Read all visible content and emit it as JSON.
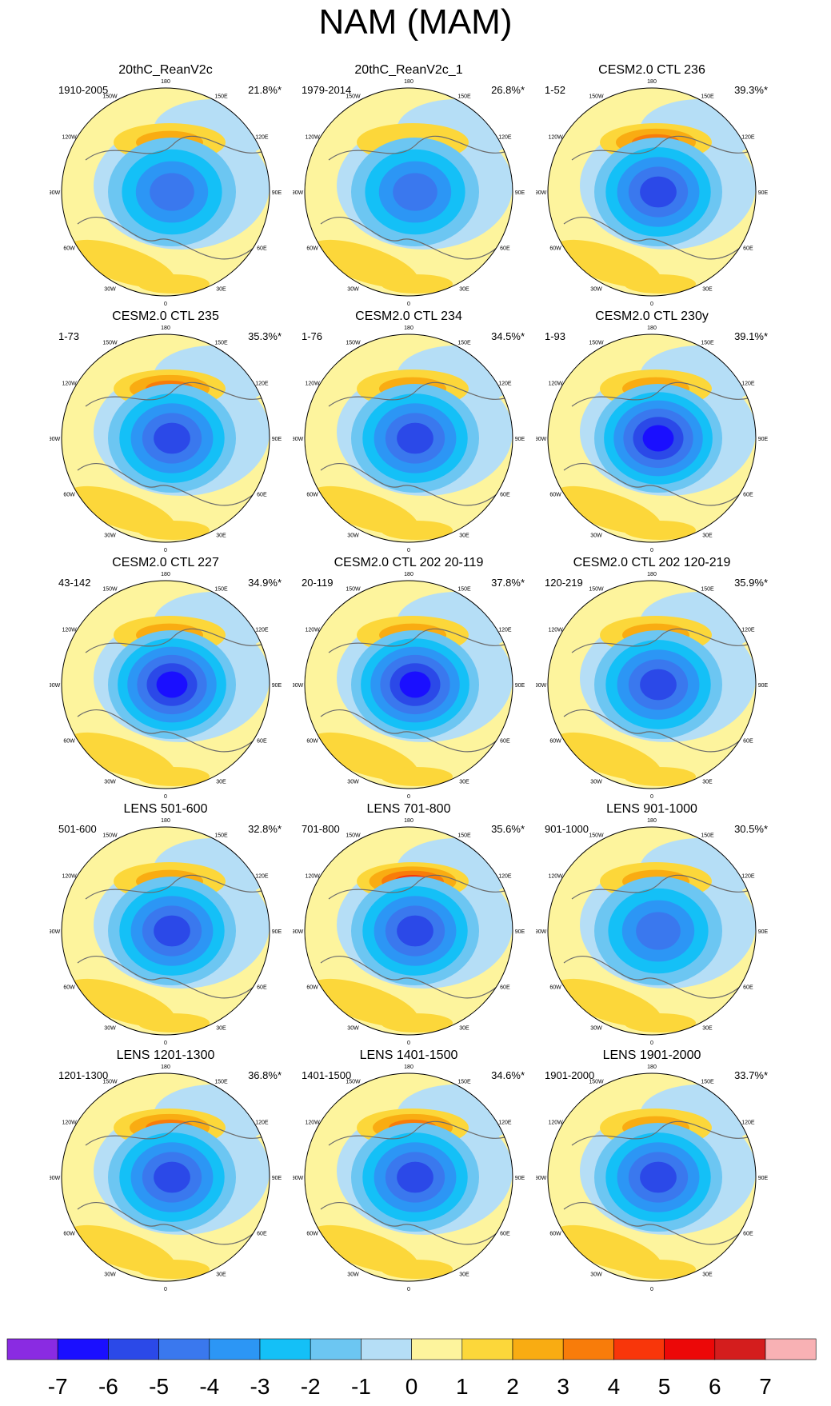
{
  "title": "NAM (MAM)",
  "chart_data": {
    "type": "heatmap",
    "projection": "north-polar-stereographic",
    "variable": "NAM regression pattern (MAM)",
    "longitude_labels": [
      "180",
      "150E",
      "120E",
      "90E",
      "60E",
      "30E",
      "0",
      "30W",
      "60W",
      "90W",
      "120W",
      "150W"
    ],
    "panels": [
      {
        "title": "20thC_ReanV2c",
        "period": "1910-2005",
        "variance": "21.8%*",
        "pole_min": -4,
        "pacific_max": 2
      },
      {
        "title": "20thC_ReanV2c_1",
        "period": "1979-2014",
        "variance": "26.8%*",
        "pole_min": -4,
        "pacific_max": 1
      },
      {
        "title": "CESM2.0 CTL 236",
        "period": "1-52",
        "variance": "39.3%*",
        "pole_min": -5,
        "pacific_max": 3
      },
      {
        "title": "CESM2.0 CTL 235",
        "period": "1-73",
        "variance": "35.3%*",
        "pole_min": -5,
        "pacific_max": 3
      },
      {
        "title": "CESM2.0 CTL 234",
        "period": "1-76",
        "variance": "34.5%*",
        "pole_min": -5,
        "pacific_max": 2
      },
      {
        "title": "CESM2.0 CTL 230y",
        "period": "1-93",
        "variance": "39.1%*",
        "pole_min": -6,
        "pacific_max": 2
      },
      {
        "title": "CESM2.0 CTL 227",
        "period": "43-142",
        "variance": "34.9%*",
        "pole_min": -6,
        "pacific_max": 2
      },
      {
        "title": "CESM2.0 CTL 202 20-119",
        "period": "20-119",
        "variance": "37.8%*",
        "pole_min": -6,
        "pacific_max": 2
      },
      {
        "title": "CESM2.0 CTL 202 120-219",
        "period": "120-219",
        "variance": "35.9%*",
        "pole_min": -5,
        "pacific_max": 2
      },
      {
        "title": "LENS 501-600",
        "period": "501-600",
        "variance": "32.8%*",
        "pole_min": -5,
        "pacific_max": 2
      },
      {
        "title": "LENS 701-800",
        "period": "701-800",
        "variance": "35.6%*",
        "pole_min": -5,
        "pacific_max": 4
      },
      {
        "title": "LENS 901-1000",
        "period": "901-1000",
        "variance": "30.5%*",
        "pole_min": -4,
        "pacific_max": 2
      },
      {
        "title": "LENS 1201-1300",
        "period": "1201-1300",
        "variance": "36.8%*",
        "pole_min": -5,
        "pacific_max": 3
      },
      {
        "title": "LENS 1401-1500",
        "period": "1401-1500",
        "variance": "34.6%*",
        "pole_min": -5,
        "pacific_max": 3
      },
      {
        "title": "LENS 1901-2000",
        "period": "1901-2000",
        "variance": "33.7%*",
        "pole_min": -5,
        "pacific_max": 2
      }
    ],
    "colorbar": {
      "ticks": [
        "-7",
        "-6",
        "-5",
        "-4",
        "-3",
        "-2",
        "-1",
        "0",
        "1",
        "2",
        "3",
        "4",
        "5",
        "6",
        "7"
      ],
      "colors": [
        "#8a2be2",
        "#1a0fff",
        "#2b49e8",
        "#3a78ee",
        "#2c96f5",
        "#14c0f7",
        "#6cc6f2",
        "#b5def6",
        "#fdf49d",
        "#fcd73a",
        "#f9ac12",
        "#f87c0a",
        "#f8360a",
        "#ec0808",
        "#d41d1d",
        "#f8b1b4"
      ]
    }
  }
}
